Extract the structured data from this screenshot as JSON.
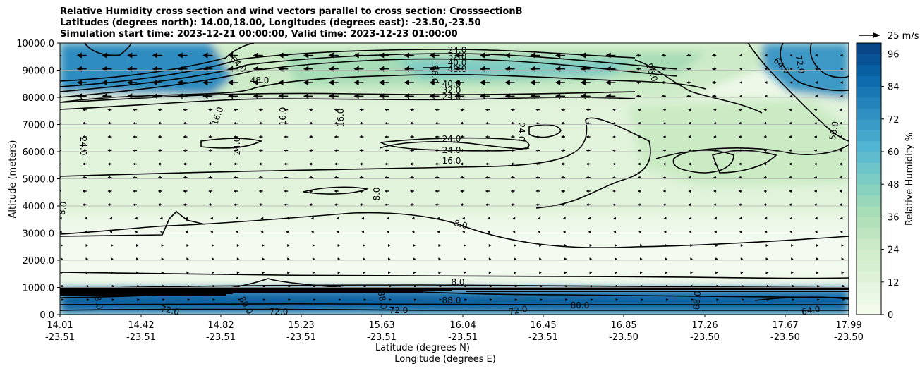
{
  "title_lines": [
    "Relative Humidity cross section and wind vectors parallel to cross section: CrosssectionB",
    "Latitudes (degrees north): 14.00,18.00, Longitudes (degrees east): -23.50,-23.50",
    "Simulation start time: 2023-12-21 00:00:00, Valid time: 2023-12-23 01:00:00"
  ],
  "chart_data": {
    "type": "heatmap",
    "ylabel": "Altitude (meters)",
    "xlabel_lines": [
      "Latitude (degrees N)",
      "Longitude (degrees E)"
    ],
    "ylim": [
      0,
      10000
    ],
    "y_ticks": [
      "0.0",
      "1000.0",
      "2000.0",
      "3000.0",
      "4000.0",
      "5000.0",
      "6000.0",
      "7000.0",
      "8000.0",
      "9000.0",
      "10000.0"
    ],
    "x_ticks": [
      {
        "lat": "14.01",
        "lon": "-23.51"
      },
      {
        "lat": "14.42",
        "lon": "-23.51"
      },
      {
        "lat": "14.82",
        "lon": "-23.51"
      },
      {
        "lat": "15.23",
        "lon": "-23.51"
      },
      {
        "lat": "15.63",
        "lon": "-23.51"
      },
      {
        "lat": "16.04",
        "lon": "-23.51"
      },
      {
        "lat": "16.45",
        "lon": "-23.51"
      },
      {
        "lat": "16.85",
        "lon": "-23.50"
      },
      {
        "lat": "17.26",
        "lon": "-23.50"
      },
      {
        "lat": "17.67",
        "lon": "-23.50"
      },
      {
        "lat": "17.99",
        "lon": "-23.50"
      }
    ],
    "grid": true,
    "colorbar": {
      "label": "Relative Humidity %",
      "ticks": [
        "0",
        "12",
        "24",
        "36",
        "48",
        "60",
        "72",
        "84",
        "96"
      ],
      "range": [
        0,
        100
      ],
      "step": 4,
      "colormap": "GnBu"
    },
    "quiver_key": "25 m/s",
    "contour_labels": [
      "8.0",
      "16.0",
      "24.0",
      "32.0",
      "40.0",
      "48.0",
      "56.0",
      "64.0",
      "72.0",
      "80.0",
      "88.0"
    ],
    "contour_label_list": [
      "24.0",
      "32.0",
      "40.0",
      "48.0",
      "56.0",
      "40.0",
      "32.0",
      "24.0",
      "64.0",
      "48.0",
      "56.0",
      "16.0",
      "16.0",
      "16.0",
      "24.0",
      "24.0",
      "24.0",
      "24.0",
      "24.0",
      "16.0",
      "8.0",
      "8.0",
      "8.0",
      "8.0",
      "80.0",
      "88.0",
      "72.0",
      "72.0",
      "72.0",
      "88.0",
      "72.0",
      "80.0",
      "88.0",
      "64.0",
      "88.0",
      "64.0",
      "72.0",
      "56.0"
    ]
  }
}
